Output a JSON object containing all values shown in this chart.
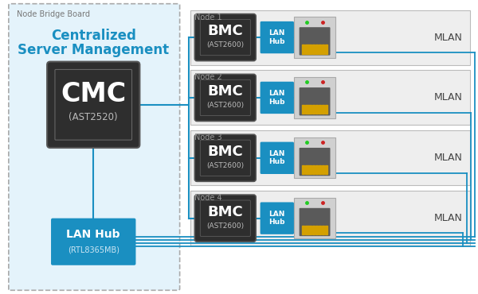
{
  "bg_color": "#ffffff",
  "light_blue_bg": "#e4f3fb",
  "node_bridge_label": "Node Bridge Board",
  "cmc_label": "CMC",
  "cmc_sub": "(AST2520)",
  "centralized_text_1": "Centralized",
  "centralized_text_2": "Server Management",
  "lan_hub_label": "LAN Hub",
  "lan_hub_sub": "(RTL8365MB)",
  "bmc_label": "BMC",
  "bmc_sub": "(AST2600)",
  "lan_hub_node_label": "LAN\nHub",
  "mlan_label": "MLAN",
  "nodes": [
    "Node 1",
    "Node 2",
    "Node 3",
    "Node 4"
  ],
  "blue": "#1a8fc1",
  "dark_chip": "#2e2e2e",
  "node_bg": "#ececec",
  "white": "#ffffff",
  "gray_text": "#888888",
  "gold": "#c8a000",
  "port_body": "#666666",
  "port_bg": "#d8d8d8"
}
